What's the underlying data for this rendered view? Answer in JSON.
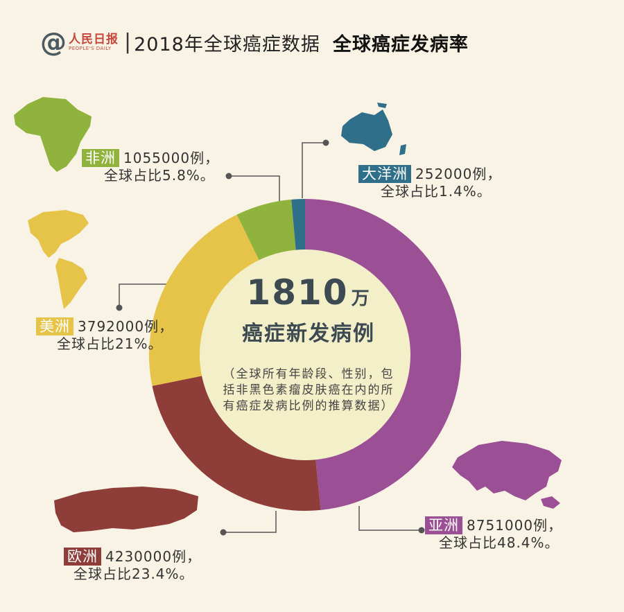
{
  "header": {
    "logo_at": "@",
    "logo_cn": "人民日报",
    "logo_en": "PEOPLE'S DAILY",
    "separator": "|",
    "title": "2018年全球癌症数据",
    "subtitle": "全球癌症发病率"
  },
  "center": {
    "number": "1810",
    "unit": "万",
    "label": "癌症新发病例",
    "note": "（全球所有年龄段、性别，包括非黑色素瘤皮肤癌在内的所有癌症发病比例的推算数据）"
  },
  "colors": {
    "background": "#f8f3e4",
    "asia": "#9b4f94",
    "europe": "#8e3d38",
    "america": "#e6c44a",
    "africa": "#8fb33c",
    "oceania": "#2f6f8a",
    "connector": "#555555"
  },
  "chart_data": {
    "type": "pie",
    "style": "donut",
    "series": [
      {
        "name": "亚洲",
        "cases": "8751000例，",
        "share_text": "全球占比48.4%。",
        "value": 48.4,
        "color": "#9b4f94"
      },
      {
        "name": "欧洲",
        "cases": "4230000例，",
        "share_text": "全球占比23.4%。",
        "value": 23.4,
        "color": "#8e3d38"
      },
      {
        "name": "美洲",
        "cases": "3792000例，",
        "share_text": "全球占比21%。",
        "value": 21.0,
        "color": "#e6c44a"
      },
      {
        "name": "非洲",
        "cases": "1055000例，",
        "share_text": "全球占比5.8%。",
        "value": 5.8,
        "color": "#8fb33c"
      },
      {
        "name": "大洋洲",
        "cases": "252000例，",
        "share_text": "全球占比1.4%。",
        "value": 1.4,
        "color": "#2f6f8a"
      }
    ]
  },
  "map_icons": [
    "africa-map-icon",
    "america-map-icon",
    "oceania-map-icon",
    "asia-map-icon",
    "europe-map-icon"
  ]
}
